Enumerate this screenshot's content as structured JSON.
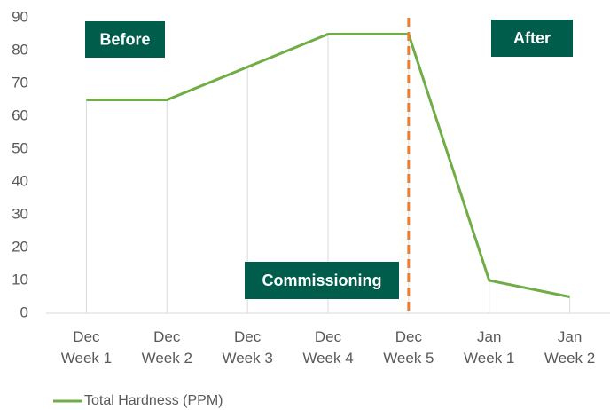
{
  "chart_data": {
    "type": "line",
    "categories": [
      "Dec\nWeek 1",
      "Dec\nWeek 2",
      "Dec\nWeek 3",
      "Dec\nWeek 4",
      "Dec\nWeek 5",
      "Jan\nWeek 1",
      "Jan\nWeek 2"
    ],
    "series": [
      {
        "name": "Total Hardness (PPM)",
        "color": "#70ad47",
        "values": [
          65,
          65,
          75,
          85,
          85,
          10,
          5
        ]
      }
    ],
    "ylim": [
      0,
      90
    ],
    "yticks": [
      0,
      10,
      20,
      30,
      40,
      50,
      60,
      70,
      80,
      90
    ],
    "vline": {
      "at": "Dec\nWeek 5",
      "color": "#ed7d31"
    },
    "annotations": [
      {
        "text": "Before"
      },
      {
        "text": "After"
      },
      {
        "text": "Commissioning"
      }
    ],
    "legend": "bottom-left"
  }
}
